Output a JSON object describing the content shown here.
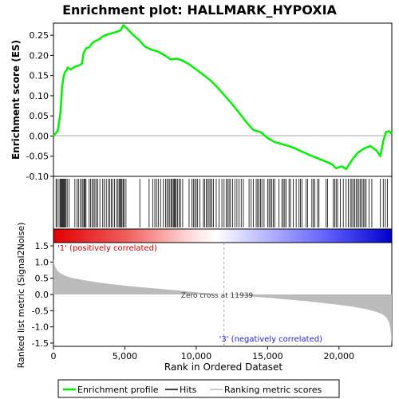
{
  "chart_data": {
    "type": "line",
    "title": "Enrichment plot: HALLMARK_HYPOXIA",
    "xlabel": "Rank in Ordered Dataset",
    "es_panel": {
      "ylabel": "Enrichment score (ES)",
      "ylim": [
        -0.1,
        0.28
      ],
      "yticks": [
        -0.1,
        -0.05,
        0.0,
        0.05,
        0.1,
        0.15,
        0.2,
        0.25
      ],
      "ytick_labels": [
        "-0.10",
        "-0.05",
        "0.00",
        "0.05",
        "0.10",
        "0.15",
        "0.20",
        "0.25"
      ],
      "series": [
        {
          "name": "Enrichment profile",
          "color": "#00ee00",
          "x": [
            0,
            300,
            500,
            600,
            700,
            800,
            900,
            1000,
            1200,
            1500,
            1800,
            2000,
            2100,
            2300,
            2500,
            2700,
            2900,
            3200,
            3500,
            3800,
            4100,
            4400,
            4700,
            4900,
            5200,
            5600,
            6000,
            6400,
            6800,
            7300,
            7800,
            8200,
            8600,
            9000,
            9500,
            10000,
            10500,
            11000,
            11500,
            12000,
            12500,
            13000,
            13500,
            14000,
            14500,
            15000,
            15500,
            16000,
            16500,
            17000,
            17500,
            18000,
            18500,
            19000,
            19500,
            19800,
            20200,
            20500,
            20900,
            21300,
            21800,
            22200,
            22600,
            22900,
            23100,
            23300,
            23500,
            23700
          ],
          "y": [
            0.0,
            0.013,
            0.06,
            0.12,
            0.145,
            0.158,
            0.162,
            0.17,
            0.165,
            0.172,
            0.175,
            0.18,
            0.205,
            0.218,
            0.22,
            0.23,
            0.235,
            0.24,
            0.248,
            0.252,
            0.255,
            0.258,
            0.262,
            0.275,
            0.265,
            0.25,
            0.238,
            0.222,
            0.215,
            0.21,
            0.2,
            0.19,
            0.192,
            0.188,
            0.178,
            0.165,
            0.152,
            0.138,
            0.12,
            0.1,
            0.08,
            0.058,
            0.035,
            0.015,
            0.01,
            -0.005,
            -0.015,
            -0.02,
            -0.025,
            -0.032,
            -0.04,
            -0.048,
            -0.055,
            -0.062,
            -0.07,
            -0.08,
            -0.075,
            -0.082,
            -0.06,
            -0.042,
            -0.03,
            -0.025,
            -0.035,
            -0.05,
            -0.012,
            0.01,
            0.012,
            0.005
          ]
        }
      ]
    },
    "hits_legend_label": "Hits",
    "metric_panel": {
      "ylabel": "Ranked list metric (Signal2Noise)",
      "ylim": [
        -1.6,
        1.6
      ],
      "yticks": [
        -1.5,
        -1.0,
        -0.5,
        0.0,
        0.5,
        1.0,
        1.5
      ],
      "ytick_labels": [
        "-1.5",
        "-1.0",
        "-0.5",
        "0.0",
        "0.5",
        "1.0",
        "1.5"
      ],
      "series_name": "Ranking metric scores",
      "color": "#bbbbbb",
      "x": [
        0,
        50,
        150,
        300,
        500,
        800,
        1200,
        2000,
        3000,
        4000,
        5000,
        6000,
        7000,
        8000,
        9000,
        10000,
        11000,
        11939,
        13000,
        14000,
        15000,
        16000,
        17000,
        18000,
        19000,
        20000,
        21000,
        22000,
        22500,
        23000,
        23300,
        23500,
        23600,
        23700
      ],
      "y": [
        1.1,
        0.95,
        0.82,
        0.72,
        0.65,
        0.58,
        0.52,
        0.45,
        0.38,
        0.32,
        0.27,
        0.23,
        0.19,
        0.15,
        0.11,
        0.07,
        0.03,
        0.0,
        -0.03,
        -0.07,
        -0.1,
        -0.14,
        -0.18,
        -0.22,
        -0.27,
        -0.32,
        -0.38,
        -0.46,
        -0.52,
        -0.6,
        -0.7,
        -0.85,
        -1.05,
        -1.5
      ],
      "zero_cross_label": "Zero cross at 11939",
      "zero_cross_rank": 11939,
      "positive_label": "'1' (positively correlated)",
      "negative_label": "'3' (negatively correlated)"
    },
    "xlim": [
      0,
      23700
    ],
    "xticks": [
      0,
      5000,
      10000,
      15000,
      20000
    ],
    "xtick_labels": [
      "0",
      "5,000",
      "10,000",
      "15,000",
      "20,000"
    ],
    "hit_ranks": [
      180,
      260,
      390,
      470,
      540,
      590,
      640,
      700,
      760,
      820,
      880,
      960,
      1100,
      1500,
      1650,
      1750,
      1880,
      2000,
      2070,
      2150,
      2200,
      2280,
      2500,
      2600,
      2700,
      2800,
      2900,
      3000,
      3100,
      3250,
      3450,
      3550,
      3700,
      3850,
      3950,
      4050,
      4150,
      4280,
      4420,
      4520,
      4600,
      4680,
      4740,
      4800,
      4880,
      4950,
      5080,
      6050,
      6700,
      6950,
      7100,
      7220,
      7340,
      7500,
      7700,
      7850,
      7950,
      8050,
      8150,
      8250,
      8320,
      8400,
      8460,
      8520,
      8600,
      8700,
      8800,
      8900,
      9050,
      9500,
      9700,
      9800,
      9900,
      10000,
      10100,
      10250,
      10500,
      10600,
      10700,
      10800,
      10900,
      11000,
      11100,
      11200,
      11400,
      11600,
      11800,
      11950,
      12100,
      12200,
      12300,
      12400,
      12550,
      12700,
      12850,
      13000,
      13150,
      13300,
      13700,
      13850,
      14000,
      14200,
      14300,
      14400,
      14500,
      14600,
      14750,
      15000,
      15100,
      15200,
      15300,
      15400,
      15500,
      15800,
      16000,
      16100,
      16200,
      16300,
      16500,
      16600,
      16800,
      17000,
      17200,
      17300,
      17400,
      17700,
      17800,
      18100,
      18200,
      18300,
      18500,
      18600,
      19100,
      19200,
      19600,
      19700,
      19800,
      19900,
      20100,
      20300,
      20500,
      20650,
      20800,
      20900,
      21000,
      21100,
      21200,
      21300,
      21400,
      21500,
      21600,
      21700,
      21800,
      21900,
      22100,
      22300,
      22900,
      23100,
      23250,
      23400
    ],
    "legend": [
      {
        "label": "Enrichment profile",
        "color": "#00ee00"
      },
      {
        "label": "Hits",
        "color": "#000000"
      },
      {
        "label": "Ranking metric scores",
        "color": "#bbbbbb"
      }
    ]
  }
}
